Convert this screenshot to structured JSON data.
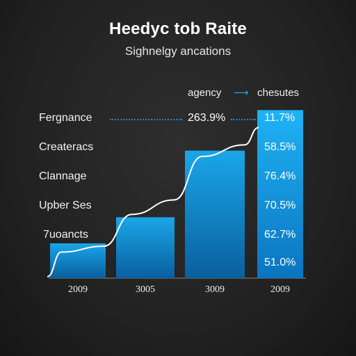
{
  "chart_data": {
    "type": "bar",
    "title": "Heedyc tob Raite",
    "subtitle": "Sighnelgy ancations",
    "legend": {
      "left_label": "agency",
      "right_label": "chesutes",
      "placement": "top-right"
    },
    "categories": [
      "2009",
      "3005",
      "3009",
      "2009"
    ],
    "values": [
      12,
      21,
      44,
      58
    ],
    "ylim": [
      0,
      60
    ],
    "row_labels": [
      "Fergnance",
      "Createracs",
      "Clannage",
      "Upber Ses",
      "7uoancts"
    ],
    "callout_value": "263.9%",
    "percent_labels": [
      "11.7%",
      "58.5%",
      "76.4%",
      "70.5%",
      "62.7%",
      "51.0%"
    ],
    "trend_line": [
      {
        "x": 0,
        "y": 0.5
      },
      {
        "x": 0.2,
        "y": 9
      },
      {
        "x": 0.8,
        "y": 11
      },
      {
        "x": 1.2,
        "y": 22
      },
      {
        "x": 1.8,
        "y": 27
      },
      {
        "x": 2.2,
        "y": 42
      },
      {
        "x": 2.8,
        "y": 46
      },
      {
        "x": 3,
        "y": 52
      }
    ],
    "colors": {
      "bar_top": "#1aa6e8",
      "bar_bottom": "#0a5f9e",
      "highlight_bar": "#1baaf0",
      "trend": "#ffffff",
      "dotted": "#2a86c8"
    },
    "grid": false
  }
}
